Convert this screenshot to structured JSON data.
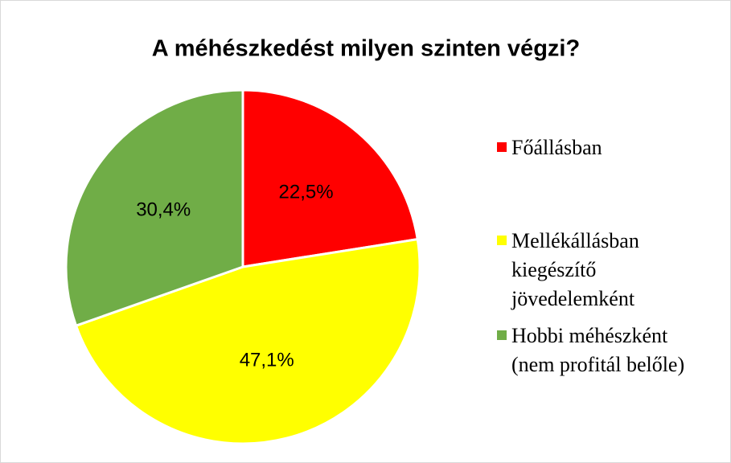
{
  "chart_data": {
    "type": "pie",
    "title": "A méhészkedést milyen szinten végzi?",
    "categories": [
      "Főállásban",
      "Mellékállásban kiegészítő jövedelemként",
      "Hobbi méhészként (nem profitál belőle)"
    ],
    "values": [
      22.5,
      47.1,
      30.4
    ],
    "value_labels": [
      "22,5%",
      "47,1%",
      "30,4%"
    ],
    "colors": [
      "#ff0000",
      "#ffff00",
      "#70ad47"
    ],
    "legend": "right"
  }
}
